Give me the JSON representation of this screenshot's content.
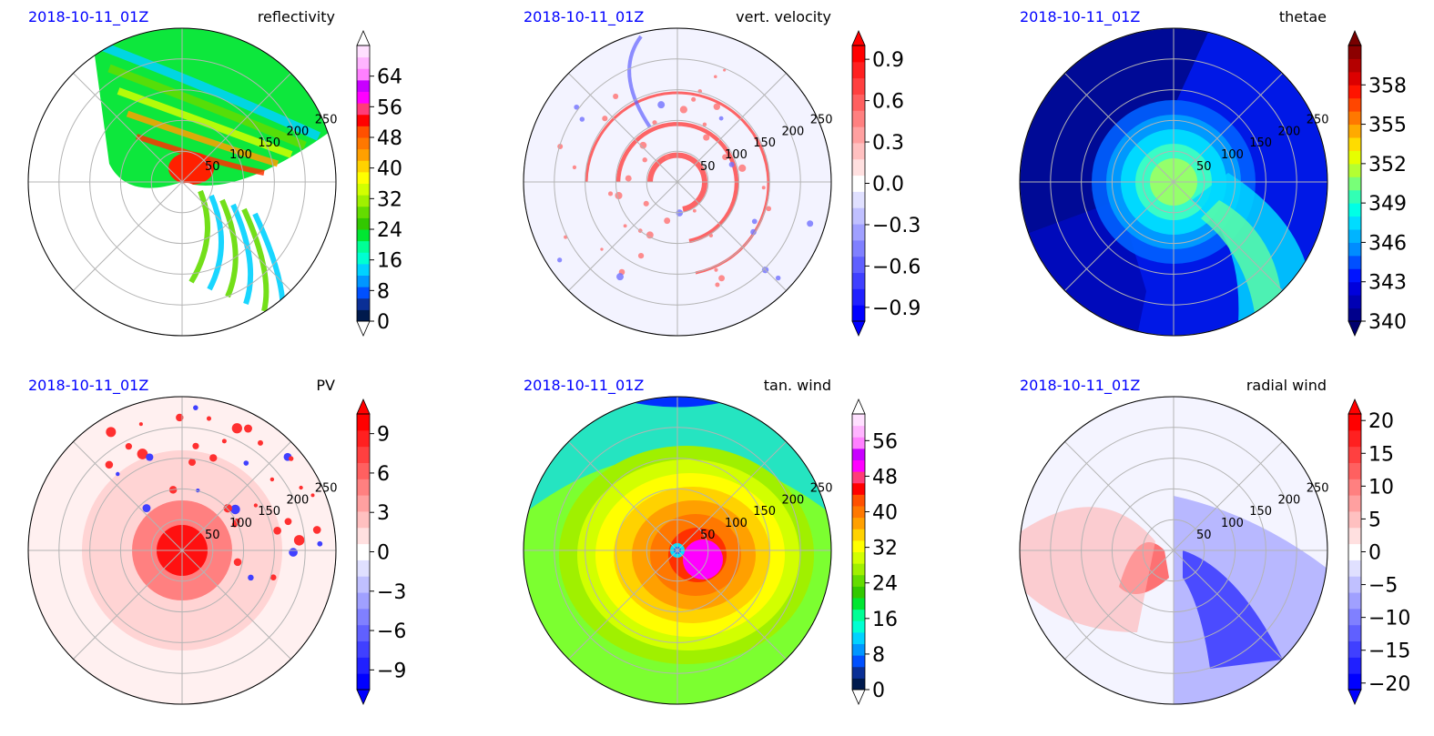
{
  "figure": {
    "panels": [
      {
        "id": "reflectivity",
        "date_label": "2018-10-11_01Z",
        "title": "reflectivity",
        "ring_labels": [
          "50",
          "100",
          "150",
          "200",
          "250"
        ],
        "colorbar": {
          "ticks": [
            "0",
            "8",
            "16",
            "24",
            "32",
            "40",
            "48",
            "56",
            "64"
          ],
          "tick_values": [
            0,
            8,
            16,
            24,
            32,
            40,
            48,
            56,
            64
          ],
          "range": [
            0,
            72
          ],
          "extend": "both",
          "colors": [
            "#001a4d",
            "#0a2f96",
            "#0050ff",
            "#0096ff",
            "#00d2ff",
            "#00ffd2",
            "#00ff96",
            "#00e632",
            "#32c800",
            "#64dc00",
            "#a0f000",
            "#d2ff00",
            "#ffff00",
            "#ffd200",
            "#ffa000",
            "#ff7800",
            "#ff5000",
            "#ff0000",
            "#ff3c78",
            "#ff00ff",
            "#c800ff",
            "#ff80ff",
            "#ffb4ff",
            "#ffe0ff"
          ],
          "extend_low_color": "#ffffff",
          "extend_high_color": "#ffffff"
        },
        "map_pattern": "reflectivity"
      },
      {
        "id": "vert-velocity",
        "date_label": "2018-10-11_01Z",
        "title": "vert. velocity",
        "ring_labels": [
          "50",
          "100",
          "150",
          "200",
          "250"
        ],
        "colorbar": {
          "ticks": [
            "−0.9",
            "−0.6",
            "−0.3",
            "0.0",
            "0.3",
            "0.6",
            "0.9"
          ],
          "tick_values": [
            -0.9,
            -0.6,
            -0.3,
            0.0,
            0.3,
            0.6,
            0.9
          ],
          "range": [
            -1.0,
            1.0
          ],
          "extend": "both",
          "colors": [
            "#0000ff",
            "#2020ff",
            "#4040ff",
            "#6060ff",
            "#8080ff",
            "#a0a0ff",
            "#c0c0ff",
            "#e0e0ff",
            "#ffffff",
            "#ffe0e0",
            "#ffc0c0",
            "#ffa0a0",
            "#ff8080",
            "#ff6060",
            "#ff4040",
            "#ff2020",
            "#ff0000"
          ],
          "extend_low_color": "#0000ff",
          "extend_high_color": "#ff0000"
        },
        "map_pattern": "vert-velocity"
      },
      {
        "id": "thetae",
        "date_label": "2018-10-11_01Z",
        "title": "thetae",
        "ring_labels": [
          "50",
          "100",
          "150",
          "200",
          "250"
        ],
        "colorbar": {
          "ticks": [
            "340",
            "343",
            "346",
            "349",
            "352",
            "355",
            "358"
          ],
          "tick_values": [
            340,
            343,
            346,
            349,
            352,
            355,
            358
          ],
          "range": [
            340,
            361
          ],
          "extend": "both",
          "colors": [
            "#00008c",
            "#0000b4",
            "#0000dc",
            "#0014ff",
            "#0050ff",
            "#008cff",
            "#00b4ff",
            "#00dcff",
            "#00ffe6",
            "#32ffb4",
            "#78ff78",
            "#b4ff32",
            "#e6ff00",
            "#ffdc00",
            "#ffaa00",
            "#ff7800",
            "#ff4600",
            "#ff1400",
            "#dc0000",
            "#b40000",
            "#8c0000"
          ],
          "extend_low_color": "#00006e",
          "extend_high_color": "#780000"
        },
        "map_pattern": "thetae"
      },
      {
        "id": "pv",
        "date_label": "2018-10-11_01Z",
        "title": "PV",
        "ring_labels": [
          "50",
          "100",
          "150",
          "200",
          "250"
        ],
        "colorbar": {
          "ticks": [
            "−9",
            "−6",
            "−3",
            "0",
            "3",
            "6",
            "9"
          ],
          "tick_values": [
            -9,
            -6,
            -3,
            0,
            3,
            6,
            9
          ],
          "range": [
            -10.5,
            10.5
          ],
          "extend": "both",
          "colors": [
            "#0000ff",
            "#2020ff",
            "#4040ff",
            "#6060ff",
            "#8080ff",
            "#a0a0ff",
            "#c0c0ff",
            "#e0e0ff",
            "#ffffff",
            "#ffe0e0",
            "#ffc0c0",
            "#ffa0a0",
            "#ff8080",
            "#ff6060",
            "#ff4040",
            "#ff2020",
            "#ff0000"
          ],
          "extend_low_color": "#0000ff",
          "extend_high_color": "#ff0000"
        },
        "map_pattern": "pv"
      },
      {
        "id": "tan-wind",
        "date_label": "2018-10-11_01Z",
        "title": "tan. wind",
        "ring_labels": [
          "50",
          "100",
          "150",
          "200",
          "250"
        ],
        "colorbar": {
          "ticks": [
            "0",
            "8",
            "16",
            "24",
            "32",
            "40",
            "48",
            "56"
          ],
          "tick_values": [
            0,
            8,
            16,
            24,
            32,
            40,
            48,
            56
          ],
          "range": [
            0,
            62
          ],
          "extend": "both",
          "colors": [
            "#001a4d",
            "#0a2f96",
            "#0050ff",
            "#0096ff",
            "#00d2ff",
            "#00ffd2",
            "#00ff96",
            "#00e632",
            "#32c800",
            "#64dc00",
            "#a0f000",
            "#d2ff00",
            "#ffff00",
            "#ffd200",
            "#ffa000",
            "#ff7800",
            "#ff5000",
            "#ff0000",
            "#ff3c78",
            "#ff00ff",
            "#c800ff",
            "#ff80ff",
            "#ffb4ff",
            "#ffe0ff"
          ],
          "extend_low_color": "#ffffff",
          "extend_high_color": "#ffffff"
        },
        "map_pattern": "tan-wind"
      },
      {
        "id": "radial-wind",
        "date_label": "2018-10-11_01Z",
        "title": "radial wind",
        "ring_labels": [
          "50",
          "100",
          "150",
          "200",
          "250"
        ],
        "colorbar": {
          "ticks": [
            "−20",
            "−15",
            "−10",
            "−5",
            "0",
            "5",
            "10",
            "15",
            "20"
          ],
          "tick_values": [
            -20,
            -15,
            -10,
            -5,
            0,
            5,
            10,
            15,
            20
          ],
          "range": [
            -21,
            21
          ],
          "extend": "both",
          "colors": [
            "#0000ff",
            "#2020ff",
            "#4040ff",
            "#6060ff",
            "#8080ff",
            "#a0a0ff",
            "#c0c0ff",
            "#e0e0ff",
            "#ffffff",
            "#ffe0e0",
            "#ffc0c0",
            "#ffa0a0",
            "#ff8080",
            "#ff6060",
            "#ff4040",
            "#ff2020",
            "#ff0000"
          ],
          "extend_low_color": "#0000ff",
          "extend_high_color": "#ff0000"
        },
        "map_pattern": "radial-wind"
      }
    ]
  },
  "chart_data": [
    {
      "type": "heatmap",
      "projection": "polar",
      "title": "reflectivity",
      "date": "2018-10-11_01Z",
      "radial_ticks": [
        50,
        100,
        150,
        200,
        250
      ],
      "colorbar_ticks": [
        0,
        8,
        16,
        24,
        32,
        40,
        48,
        56,
        64
      ],
      "value_range": [
        0,
        72
      ],
      "grid": true
    },
    {
      "type": "heatmap",
      "projection": "polar",
      "title": "vert. velocity",
      "date": "2018-10-11_01Z",
      "radial_ticks": [
        50,
        100,
        150,
        200,
        250
      ],
      "colorbar_ticks": [
        -0.9,
        -0.6,
        -0.3,
        0.0,
        0.3,
        0.6,
        0.9
      ],
      "value_range": [
        -1.0,
        1.0
      ],
      "grid": true
    },
    {
      "type": "heatmap",
      "projection": "polar",
      "title": "thetae",
      "date": "2018-10-11_01Z",
      "radial_ticks": [
        50,
        100,
        150,
        200,
        250
      ],
      "colorbar_ticks": [
        340,
        343,
        346,
        349,
        352,
        355,
        358
      ],
      "value_range": [
        340,
        361
      ],
      "grid": true
    },
    {
      "type": "heatmap",
      "projection": "polar",
      "title": "PV",
      "date": "2018-10-11_01Z",
      "radial_ticks": [
        50,
        100,
        150,
        200,
        250
      ],
      "colorbar_ticks": [
        -9,
        -6,
        -3,
        0,
        3,
        6,
        9
      ],
      "value_range": [
        -10.5,
        10.5
      ],
      "grid": true
    },
    {
      "type": "heatmap",
      "projection": "polar",
      "title": "tan. wind",
      "date": "2018-10-11_01Z",
      "radial_ticks": [
        50,
        100,
        150,
        200,
        250
      ],
      "colorbar_ticks": [
        0,
        8,
        16,
        24,
        32,
        40,
        48,
        56
      ],
      "value_range": [
        0,
        62
      ],
      "grid": true
    },
    {
      "type": "heatmap",
      "projection": "polar",
      "title": "radial wind",
      "date": "2018-10-11_01Z",
      "radial_ticks": [
        50,
        100,
        150,
        200,
        250
      ],
      "colorbar_ticks": [
        -20,
        -15,
        -10,
        -5,
        0,
        5,
        10,
        15,
        20
      ],
      "value_range": [
        -21,
        21
      ],
      "grid": true
    }
  ]
}
